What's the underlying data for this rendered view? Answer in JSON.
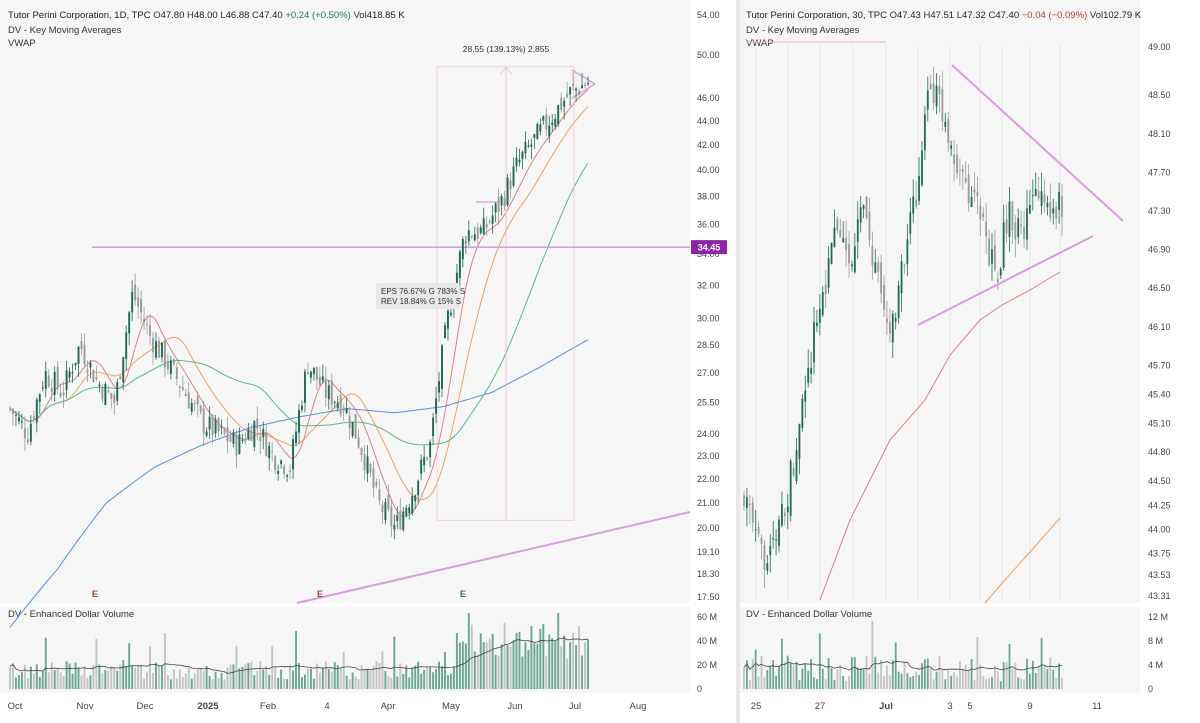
{
  "colors": {
    "up": "#1e6b58",
    "down": "#9a9a9a",
    "ema_short": "#e08080",
    "ema_mid": "#f0a060",
    "sma_50": "#5cb88a",
    "sma_200": "#5a8fd8",
    "trendline": "#d89ee0",
    "level_badge": "#8e24aa",
    "vol_up": "#6aa894",
    "vol_down": "#c4c4c4",
    "vol_avg": "#444444"
  },
  "left": {
    "symbol": "Tutor Perini Corporation, 1D, TPC",
    "ohlc": {
      "o_label": "O",
      "o": "47.80",
      "h_label": "H",
      "h": "48.00",
      "l_label": "L",
      "l": "46.88",
      "c_label": "C",
      "c": "47.40",
      "change": "+0.24 (+0.50%)",
      "vol_label": "Vol",
      "vol": "418.85 K"
    },
    "indicator1": "DV - Key Moving Averages",
    "indicator2": "VWAP",
    "volume_title": "DV - Enhanced Dollar Volume",
    "measure_label": "28.55 (139.13%) 2,855",
    "earnings_box": {
      "line1": "EPS 76.67% G 783% S",
      "line2": "REV 18.84% G 15% S"
    },
    "level_badge": "34.45",
    "earnings_markers": [
      "E",
      "E",
      "E"
    ],
    "price_ticks": [
      "54.00",
      "50.00",
      "46.00",
      "44.00",
      "42.00",
      "40.00",
      "38.00",
      "36.00",
      "34.00",
      "32.00",
      "30.00",
      "28.50",
      "27.00",
      "25.50",
      "24.00",
      "23.00",
      "22.00",
      "21.00",
      "20.00",
      "19.10",
      "18.30",
      "17.50"
    ],
    "volume_ticks": [
      "60 M",
      "40 M",
      "20 M",
      "0"
    ],
    "x_ticks": [
      "Oct",
      "Nov",
      "Dec",
      "2025",
      "Feb",
      "4",
      "Apr",
      "May",
      "Jun",
      "Jul",
      "Aug"
    ]
  },
  "right": {
    "symbol": "Tutor Perini Corporation, 30, TPC",
    "ohlc": {
      "o_label": "O",
      "o": "47.43",
      "h_label": "H",
      "h": "47.51",
      "l_label": "L",
      "l": "47.32",
      "c_label": "C",
      "c": "47.40",
      "change": "−0.04 (−0.09%)",
      "vol_label": "Vol",
      "vol": "102.79 K"
    },
    "indicator1": "DV - Key Moving Averages",
    "indicator2": "VWAP",
    "volume_title": "DV - Enhanced Dollar Volume",
    "price_ticks": [
      "49.00",
      "48.50",
      "48.10",
      "47.70",
      "47.30",
      "46.90",
      "46.50",
      "46.10",
      "45.70",
      "45.40",
      "45.10",
      "44.80",
      "44.50",
      "44.25",
      "44.00",
      "43.75",
      "43.53",
      "43.31"
    ],
    "volume_ticks": [
      "12 M",
      "8 M",
      "4 M",
      "0"
    ],
    "x_ticks": [
      "25",
      "27",
      "Jul",
      "3",
      "5",
      "9",
      "11"
    ]
  },
  "chart_data": [
    {
      "type": "candlestick",
      "title": "Tutor Perini Corporation, 1D, TPC",
      "ylim": [
        17.5,
        54
      ],
      "y_scale": "log",
      "x_ticks": [
        "Oct",
        "Nov",
        "Dec",
        "2025",
        "Feb",
        "4",
        "Apr",
        "May",
        "Jun",
        "Jul",
        "Aug"
      ],
      "series_close_approx": [
        {
          "x": "Oct",
          "y": 25.0
        },
        {
          "x": "Nov",
          "y": 30.5
        },
        {
          "x": "Dec",
          "y": 28.0
        },
        {
          "x": "2025",
          "y": 24.5
        },
        {
          "x": "Feb",
          "y": 23.0
        },
        {
          "x": "4",
          "y": 26.5
        },
        {
          "x": "Apr",
          "y": 20.5
        },
        {
          "x": "May",
          "y": 35.5
        },
        {
          "x": "Jun",
          "y": 40.0
        },
        {
          "x": "Jul",
          "y": 47.4
        }
      ],
      "horizontal_level": 34.45,
      "measure": {
        "from": 20.3,
        "to": 48.85,
        "change": 28.55,
        "pct": 139.13
      },
      "legend_position": "top-left",
      "grid": false
    },
    {
      "type": "candlestick",
      "title": "Tutor Perini Corporation, 30, TPC",
      "ylim": [
        43.31,
        49.0
      ],
      "x_ticks": [
        "25",
        "27",
        "Jul",
        "3",
        "5",
        "9",
        "11"
      ],
      "series_close_approx": [
        {
          "x": "25",
          "y": 43.8
        },
        {
          "x": "27",
          "y": 46.9
        },
        {
          "x": "Jul",
          "y": 46.0
        },
        {
          "x": "3",
          "y": 48.3
        },
        {
          "x": "5",
          "y": 47.6
        },
        {
          "x": "9",
          "y": 47.4
        }
      ],
      "legend_position": "top-left",
      "grid": false
    }
  ]
}
